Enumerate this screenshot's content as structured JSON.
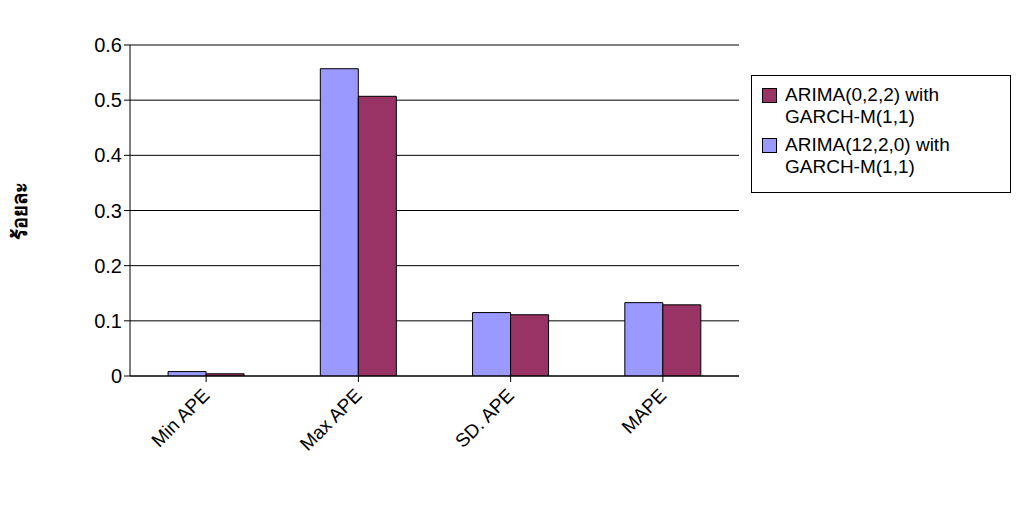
{
  "chart_data": {
    "type": "bar",
    "y_label": "ร้อยละ",
    "categories": [
      "Min APE",
      "Max APE",
      "SD. APE",
      "MAPE"
    ],
    "series": [
      {
        "name": "ARIMA(12,2,0) with GARCH-M(1,1)",
        "color": "#9999ff",
        "values": [
          0.008,
          0.557,
          0.115,
          0.133
        ]
      },
      {
        "name": "ARIMA(0,2,2) with GARCH-M(1,1)",
        "color": "#993366",
        "values": [
          0.004,
          0.507,
          0.111,
          0.129
        ]
      }
    ],
    "ylim": [
      0,
      0.6
    ],
    "yticks": [
      0,
      0.1,
      0.2,
      0.3,
      0.4,
      0.5,
      0.6
    ],
    "grid": true,
    "legend": "right"
  }
}
